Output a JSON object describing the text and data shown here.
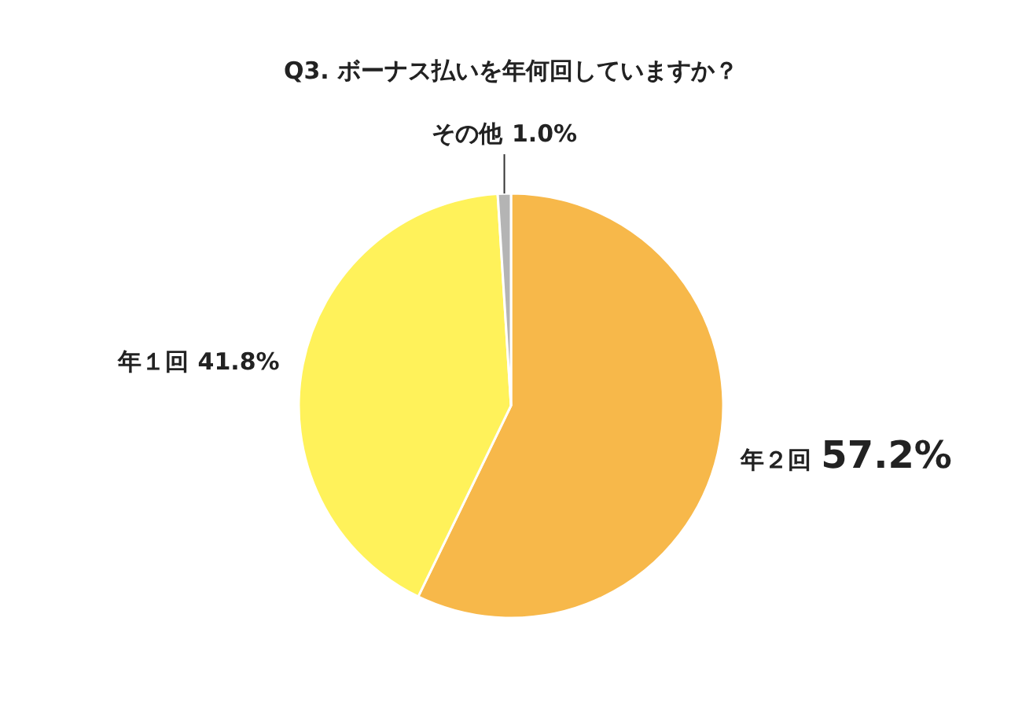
{
  "chart_data": {
    "type": "pie",
    "title": "Q3. ボーナス払いを年何回していますか？",
    "categories": [
      "年２回",
      "年１回",
      "その他"
    ],
    "values": [
      57.2,
      41.8,
      1.0
    ],
    "colors": [
      "#f7b84a",
      "#fff25a",
      "#b4b4b4"
    ],
    "value_labels": [
      "57.2%",
      "41.8%",
      "1.0%"
    ]
  }
}
